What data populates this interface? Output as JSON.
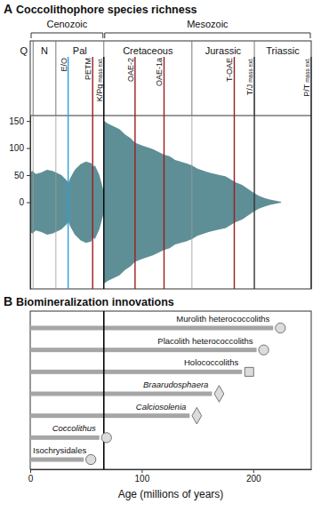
{
  "chart_data": [
    {
      "type": "spindle",
      "panel": "A",
      "title": "Coccolithophore species richness",
      "x": [
        0,
        2,
        5,
        10,
        15,
        20,
        23,
        28,
        33,
        34,
        36,
        40,
        45,
        50,
        55,
        56,
        58,
        62,
        64,
        65.9,
        66,
        70,
        75,
        80,
        85,
        90,
        94,
        100,
        110,
        120,
        125,
        130,
        140,
        145,
        150,
        160,
        170,
        175,
        180,
        183,
        185,
        190,
        195,
        200,
        205,
        210,
        215,
        220,
        225
      ],
      "values": [
        55,
        58,
        52,
        55,
        60,
        58,
        55,
        50,
        40,
        35,
        45,
        60,
        70,
        75,
        72,
        65,
        68,
        50,
        35,
        20,
        150,
        145,
        140,
        135,
        125,
        118,
        110,
        105,
        98,
        88,
        85,
        78,
        72,
        68,
        62,
        55,
        50,
        48,
        42,
        38,
        36,
        32,
        25,
        18,
        12,
        8,
        5,
        3,
        1
      ],
      "color": "#5f8f96",
      "xlim": [
        0,
        252
      ],
      "ylim": [
        -160,
        160
      ],
      "yticks": [
        0,
        50,
        100,
        150
      ],
      "tick_labels": "y",
      "eras": [
        {
          "label": "Cenozoic",
          "start": 0,
          "end": 66
        },
        {
          "label": "Mesozoic",
          "start": 66,
          "end": 252
        }
      ],
      "periods": [
        {
          "label": "Q",
          "start": 0,
          "end": 2.58
        },
        {
          "label": "N",
          "start": 2.58,
          "end": 23
        },
        {
          "label": "Pal",
          "start": 23,
          "end": 66
        },
        {
          "label": "Cretaceous",
          "start": 66,
          "end": 145
        },
        {
          "label": "Jurassic",
          "start": 145,
          "end": 201
        },
        {
          "label": "Triassic",
          "start": 201,
          "end": 252
        }
      ],
      "events": [
        {
          "label": "E/O",
          "x": 34,
          "color": "#2a9fd8"
        },
        {
          "label": "PETM",
          "x": 56,
          "color": "#9e1b1b"
        },
        {
          "label": "K/Pg mass ext.",
          "x": 66,
          "color": "#000000"
        },
        {
          "label": "OAE-2",
          "x": 94,
          "color": "#9e1b1b"
        },
        {
          "label": "OAE-1a",
          "x": 120,
          "color": "#9e1b1b"
        },
        {
          "label": "T-OAE",
          "x": 183,
          "color": "#9e1b1b"
        },
        {
          "label": "T/J mass ext.",
          "x": 201,
          "color": "#333333"
        },
        {
          "label": "P/T mass ext.",
          "x": 252,
          "color": "#333333"
        }
      ]
    },
    {
      "type": "bar",
      "orientation": "horizontal",
      "panel": "B",
      "title": "Biomineralization innovations",
      "categories": [
        "Murolith heterococcoliths",
        "Placolith heterococcoliths",
        "Holococcoliths",
        "Braarudosphaera",
        "Calciosolenia",
        "Coccolithus",
        "Isochrysidales"
      ],
      "values": [
        218,
        203,
        190,
        163,
        143,
        62,
        48
      ],
      "color": "#a6a6a6",
      "xlim": [
        0,
        252
      ],
      "xticks": [
        0,
        100,
        200
      ],
      "xlabel": "Age (millions of years)",
      "tick_labels": "x",
      "boundaries": [
        66
      ]
    }
  ]
}
